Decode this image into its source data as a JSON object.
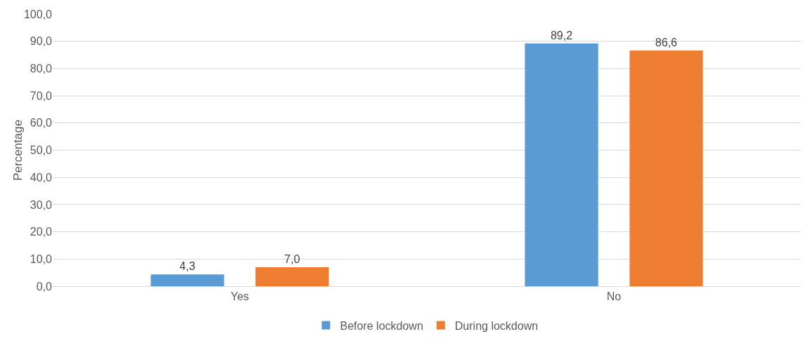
{
  "chart_data": {
    "type": "bar",
    "ylabel": "Percentage",
    "categories": [
      "Yes",
      "No"
    ],
    "series": [
      {
        "name": "Before lockdown",
        "color": "#5b9bd5",
        "values": [
          4.3,
          89.2
        ],
        "value_labels": [
          "4,3",
          "89,2"
        ]
      },
      {
        "name": "During lockdown",
        "color": "#ed7d31",
        "values": [
          7.0,
          86.6
        ],
        "value_labels": [
          "7,0",
          "86,6"
        ]
      }
    ],
    "ylim": [
      0,
      100
    ],
    "yticks": [
      {
        "value": 0,
        "label": "0,0"
      },
      {
        "value": 10,
        "label": "10,0"
      },
      {
        "value": 20,
        "label": "20,0"
      },
      {
        "value": 30,
        "label": "30,0"
      },
      {
        "value": 40,
        "label": "40,0"
      },
      {
        "value": 50,
        "label": "50,0"
      },
      {
        "value": 60,
        "label": "60,0"
      },
      {
        "value": 70,
        "label": "70,0"
      },
      {
        "value": 80,
        "label": "80,0"
      },
      {
        "value": 90,
        "label": "90,0"
      },
      {
        "value": 100,
        "label": "100,0"
      }
    ],
    "grid": "y",
    "legend": "bottom"
  }
}
